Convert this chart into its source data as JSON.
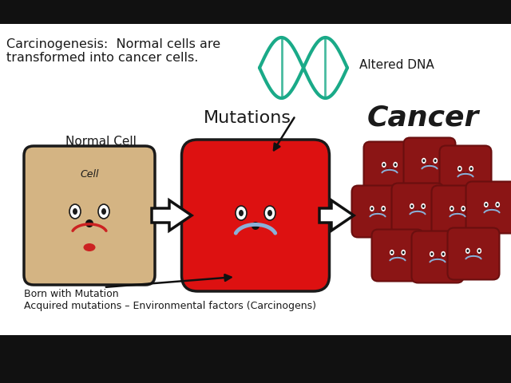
{
  "background_color": "#ffffff",
  "black_bar_color": "#111111",
  "outline_color": "#1a1a1a",
  "title_text": "Carcinogenesis:  Normal cells are\ntransformed into cancer cells.",
  "altered_dna_text": "Altered DNA",
  "mutations_text": "Mutations",
  "cancer_text": "Cancer",
  "normal_cell_label": "Normal Cell",
  "cell_inner_label": "Cell",
  "born_text": "Born with Mutation\nAcquired mutations – Environmental factors (Carcinogens)",
  "normal_cell_color": "#d4b483",
  "mutated_cell_color": "#dd1111",
  "cancer_cell_color": "#8b1515",
  "cancer_cell_dark": "#6a0f0f",
  "dna_color": "#1aaa88",
  "arrow_color": "#111111",
  "smile_color": "#8ab0d8",
  "eye_white": "#ffffff",
  "tongue_color": "#cc2222",
  "nose_color": "#111111"
}
